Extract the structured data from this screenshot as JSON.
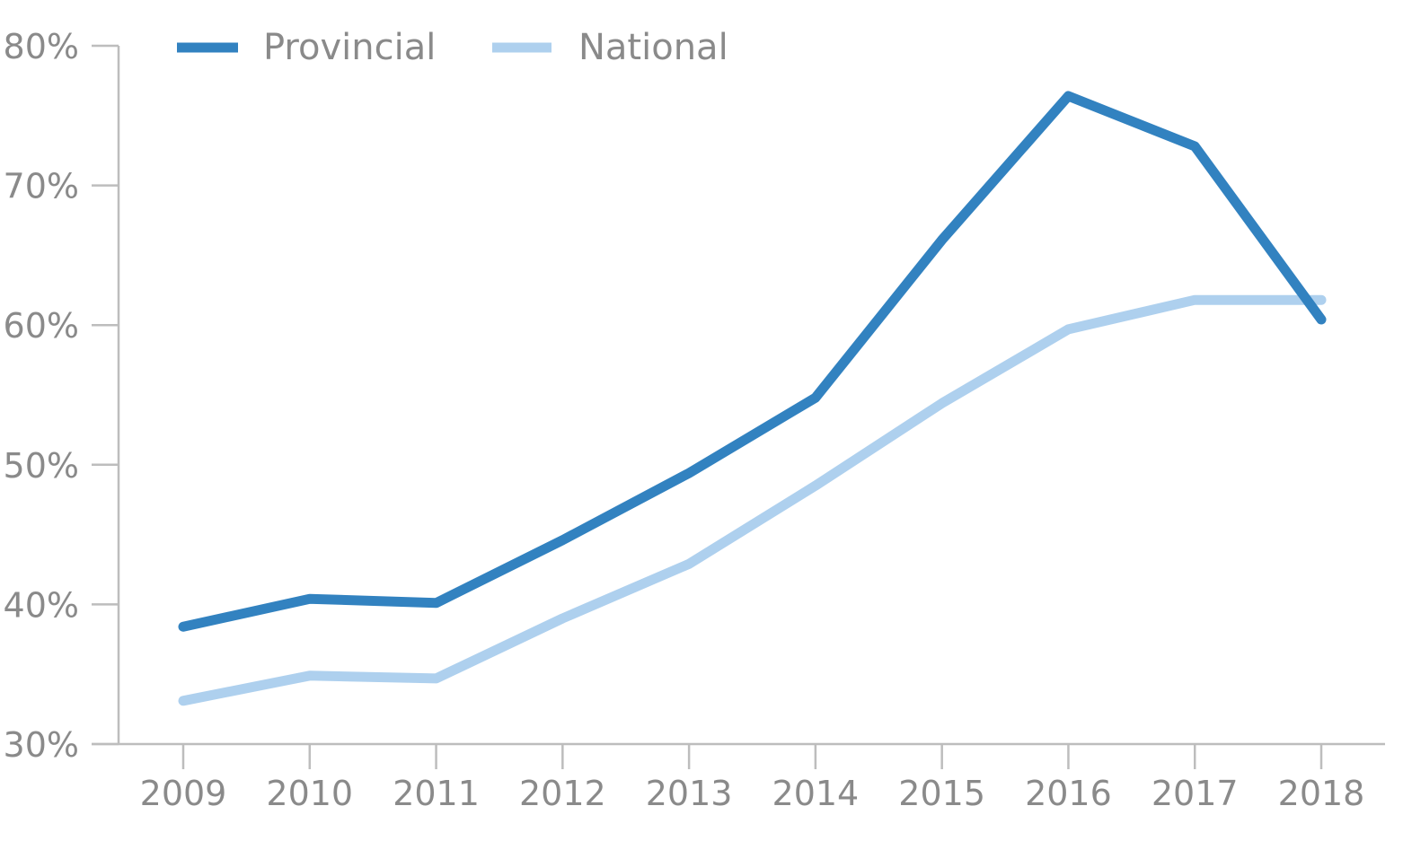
{
  "chart_data": {
    "type": "line",
    "title": "",
    "xlabel": "",
    "ylabel": "",
    "x": [
      "2009",
      "2010",
      "2011",
      "2012",
      "2013",
      "2014",
      "2015",
      "2016",
      "2017",
      "2018"
    ],
    "ylim": [
      30,
      80
    ],
    "yticks": [
      30,
      40,
      50,
      60,
      70,
      80
    ],
    "ytick_labels": [
      "30%",
      "40%",
      "50%",
      "60%",
      "70%",
      "80%"
    ],
    "grid": false,
    "legend_position": "top-left",
    "series": [
      {
        "name": "Provincial",
        "color": "#3282c0",
        "values": [
          38.4,
          40.4,
          40.1,
          44.6,
          49.4,
          54.8,
          66.1,
          76.4,
          72.8,
          60.4
        ]
      },
      {
        "name": "National",
        "color": "#aed0ee",
        "values": [
          33.1,
          34.9,
          34.7,
          39.0,
          42.9,
          48.5,
          54.4,
          59.7,
          61.8,
          61.8
        ]
      }
    ]
  }
}
